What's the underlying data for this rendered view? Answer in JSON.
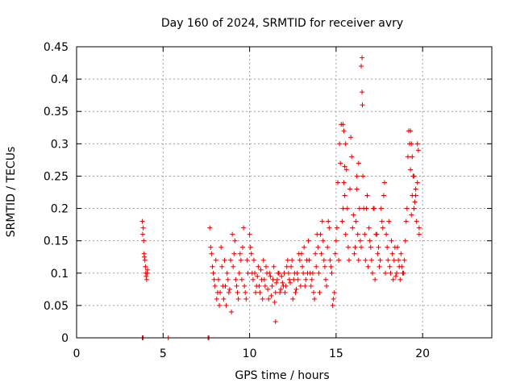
{
  "chart_data": {
    "type": "scatter",
    "title": "Day 160 of 2024, SRMTID for receiver avry",
    "xlabel": "GPS time / hours",
    "ylabel": "SRMTID / TECUs",
    "xlim": [
      0,
      24
    ],
    "ylim": [
      0,
      0.45
    ],
    "xticks": [
      "0",
      "5",
      "10",
      "15",
      "20"
    ],
    "yticks": [
      "0",
      "0.05",
      "0.1",
      "0.15",
      "0.2",
      "0.25",
      "0.3",
      "0.35",
      "0.4",
      "0.45"
    ],
    "grid": true,
    "marker": "+",
    "color": "#e00000",
    "series": [
      {
        "x": [
          3.8,
          3.85,
          3.9,
          3.95,
          4.0,
          4.05,
          4.1,
          3.82,
          3.88,
          3.92,
          3.98,
          4.02,
          4.08,
          7.7,
          7.8,
          7.9,
          8.0,
          8.1,
          8.2,
          8.3,
          8.4,
          8.5,
          8.6,
          8.7,
          8.8,
          8.9,
          9.0,
          9.1,
          9.2,
          9.3,
          9.4,
          9.5,
          9.6,
          9.7,
          9.8,
          9.9,
          7.75,
          7.85,
          7.95,
          8.05,
          8.15,
          8.25,
          8.35,
          8.45,
          8.55,
          8.65,
          8.75,
          8.85,
          8.95,
          9.05,
          9.15,
          9.25,
          9.35,
          9.45,
          9.55,
          9.65,
          9.75,
          9.85,
          10.0,
          10.1,
          10.2,
          10.3,
          10.4,
          10.5,
          10.6,
          10.7,
          10.8,
          10.9,
          11.0,
          11.1,
          11.2,
          11.3,
          11.4,
          11.5,
          11.6,
          11.7,
          11.8,
          11.9,
          10.05,
          10.15,
          10.25,
          10.35,
          10.45,
          10.55,
          10.65,
          10.75,
          10.85,
          10.95,
          11.05,
          11.15,
          11.25,
          11.35,
          11.45,
          11.55,
          11.65,
          11.75,
          11.85,
          11.95,
          12.0,
          12.1,
          12.2,
          12.3,
          12.4,
          12.5,
          12.6,
          12.7,
          12.8,
          12.9,
          13.0,
          13.1,
          13.2,
          13.3,
          13.4,
          13.5,
          13.6,
          13.7,
          13.8,
          13.9,
          12.05,
          12.15,
          12.25,
          12.35,
          12.45,
          12.55,
          12.65,
          12.75,
          12.85,
          12.95,
          13.05,
          13.15,
          13.25,
          13.35,
          13.45,
          13.55,
          13.65,
          13.75,
          13.85,
          13.95,
          14.0,
          14.1,
          14.2,
          14.3,
          14.4,
          14.5,
          14.6,
          14.7,
          14.8,
          14.9,
          15.0,
          15.1,
          15.2,
          15.3,
          15.4,
          15.5,
          15.6,
          15.7,
          15.8,
          15.9,
          14.05,
          14.15,
          14.25,
          14.35,
          14.45,
          14.55,
          14.65,
          14.75,
          14.85,
          14.95,
          15.05,
          15.15,
          15.25,
          15.35,
          15.45,
          15.55,
          15.65,
          15.75,
          15.85,
          15.95,
          16.0,
          16.1,
          16.2,
          16.3,
          16.4,
          16.5,
          16.6,
          16.7,
          16.8,
          16.9,
          17.0,
          17.1,
          17.2,
          17.3,
          17.4,
          17.5,
          17.6,
          17.7,
          17.8,
          17.9,
          16.05,
          16.15,
          16.25,
          16.35,
          16.45,
          16.55,
          16.65,
          16.75,
          16.85,
          16.95,
          17.05,
          17.15,
          17.25,
          17.35,
          17.45,
          17.55,
          17.65,
          17.75,
          17.85,
          17.95,
          18.0,
          18.1,
          18.2,
          18.3,
          18.4,
          18.5,
          18.6,
          18.7,
          18.8,
          18.9,
          19.0,
          19.1,
          19.2,
          19.3,
          19.4,
          19.5,
          19.6,
          19.7,
          19.8,
          18.05,
          18.15,
          18.25,
          18.35,
          18.45,
          18.55,
          18.65,
          18.75,
          18.85,
          18.95,
          19.05,
          19.15,
          19.25,
          19.35,
          19.45,
          19.55,
          19.65,
          19.75,
          15.4,
          15.45,
          15.5,
          15.55,
          16.2,
          16.3,
          16.45,
          16.5,
          16.52,
          19.3,
          19.35,
          19.4,
          19.5,
          19.6,
          19.7,
          19.8,
          3.8,
          3.85,
          5.3,
          7.6,
          7.65,
          11.5
        ],
        "y": [
          0.18,
          0.17,
          0.13,
          0.12,
          0.1,
          0.09,
          0.105,
          0.16,
          0.15,
          0.125,
          0.11,
          0.095,
          0.1,
          0.17,
          0.13,
          0.1,
          0.08,
          0.06,
          0.09,
          0.07,
          0.11,
          0.06,
          0.08,
          0.1,
          0.07,
          0.12,
          0.16,
          0.13,
          0.09,
          0.07,
          0.1,
          0.12,
          0.14,
          0.08,
          0.06,
          0.1,
          0.14,
          0.11,
          0.09,
          0.12,
          0.07,
          0.05,
          0.14,
          0.08,
          0.12,
          0.05,
          0.09,
          0.075,
          0.04,
          0.11,
          0.15,
          0.08,
          0.06,
          0.13,
          0.09,
          0.17,
          0.07,
          0.12,
          0.16,
          0.13,
          0.09,
          0.1,
          0.08,
          0.11,
          0.07,
          0.09,
          0.12,
          0.08,
          0.1,
          0.06,
          0.095,
          0.08,
          0.11,
          0.07,
          0.09,
          0.1,
          0.075,
          0.085,
          0.14,
          0.1,
          0.12,
          0.07,
          0.095,
          0.08,
          0.105,
          0.06,
          0.09,
          0.11,
          0.075,
          0.1,
          0.065,
          0.09,
          0.055,
          0.085,
          0.1,
          0.07,
          0.095,
          0.08,
          0.1,
          0.08,
          0.12,
          0.09,
          0.11,
          0.06,
          0.1,
          0.075,
          0.09,
          0.12,
          0.13,
          0.1,
          0.08,
          0.12,
          0.15,
          0.1,
          0.09,
          0.07,
          0.13,
          0.16,
          0.07,
          0.11,
          0.1,
          0.085,
          0.12,
          0.09,
          0.07,
          0.1,
          0.13,
          0.08,
          0.11,
          0.14,
          0.09,
          0.1,
          0.12,
          0.08,
          0.1,
          0.06,
          0.11,
          0.14,
          0.1,
          0.16,
          0.18,
          0.12,
          0.09,
          0.14,
          0.17,
          0.11,
          0.05,
          0.07,
          0.15,
          0.24,
          0.3,
          0.33,
          0.2,
          0.22,
          0.26,
          0.14,
          0.23,
          0.28,
          0.07,
          0.13,
          0.15,
          0.11,
          0.08,
          0.18,
          0.12,
          0.1,
          0.06,
          0.13,
          0.17,
          0.12,
          0.27,
          0.18,
          0.24,
          0.16,
          0.2,
          0.12,
          0.31,
          0.17,
          0.19,
          0.14,
          0.23,
          0.12,
          0.15,
          0.38,
          0.2,
          0.12,
          0.22,
          0.17,
          0.14,
          0.1,
          0.2,
          0.16,
          0.13,
          0.11,
          0.2,
          0.17,
          0.24,
          0.16,
          0.13,
          0.18,
          0.16,
          0.2,
          0.14,
          0.25,
          0.16,
          0.2,
          0.11,
          0.15,
          0.12,
          0.2,
          0.09,
          0.16,
          0.14,
          0.12,
          0.18,
          0.22,
          0.1,
          0.14,
          0.12,
          0.11,
          0.15,
          0.09,
          0.14,
          0.1,
          0.12,
          0.09,
          0.11,
          0.1,
          0.15,
          0.2,
          0.32,
          0.26,
          0.22,
          0.2,
          0.23,
          0.24,
          0.16,
          0.18,
          0.1,
          0.13,
          0.12,
          0.095,
          0.14,
          0.11,
          0.13,
          0.1,
          0.12,
          0.18,
          0.28,
          0.3,
          0.19,
          0.25,
          0.21,
          0.18,
          0.29,
          0.33,
          0.32,
          0.265,
          0.3,
          0.25,
          0.27,
          0.42,
          0.433,
          0.36,
          0.32,
          0.3,
          0.28,
          0.25,
          0.22,
          0.3,
          0.17,
          0.0,
          0.0,
          0.0,
          0.0,
          0.0,
          0.025
        ]
      }
    ]
  }
}
